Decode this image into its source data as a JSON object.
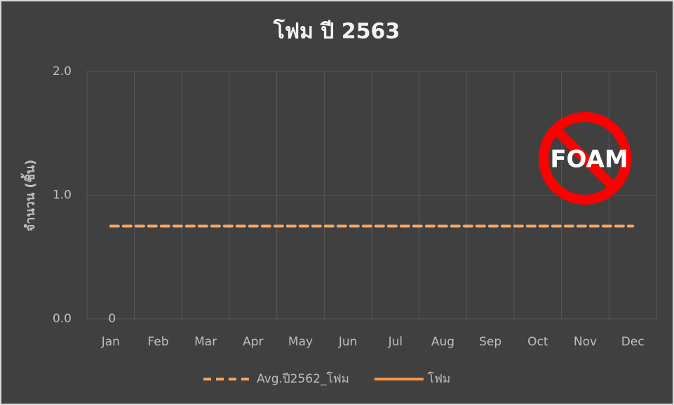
{
  "chart_data": {
    "type": "line",
    "title": "โฟม ปี 2563",
    "y_axis_label": "จำนวน (ชิ้น)",
    "annotation": "FOAM",
    "categories": [
      "Jan",
      "Feb",
      "Mar",
      "Apr",
      "May",
      "Jun",
      "Jul",
      "Aug",
      "Sep",
      "Oct",
      "Nov",
      "Dec"
    ],
    "series": [
      {
        "name": "Avg.ปี2562_โฟม",
        "color": "#f4a460",
        "dashed": true,
        "values": [
          0.75,
          0.75,
          0.75,
          0.75,
          0.75,
          0.75,
          0.75,
          0.75,
          0.75,
          0.75,
          0.75,
          0.75
        ]
      },
      {
        "name": "โฟม",
        "color": "#f79646",
        "dashed": false,
        "data_labels": true,
        "values": [
          0,
          null,
          null,
          null,
          null,
          null,
          null,
          null,
          null,
          null,
          null,
          null
        ]
      }
    ],
    "ylim": [
      0,
      2
    ],
    "yticks": [
      {
        "value": 0,
        "label": "0.0"
      },
      {
        "value": 1,
        "label": "1.0"
      },
      {
        "value": 2,
        "label": "2.0"
      }
    ],
    "grid": true,
    "legend": "bottom"
  }
}
